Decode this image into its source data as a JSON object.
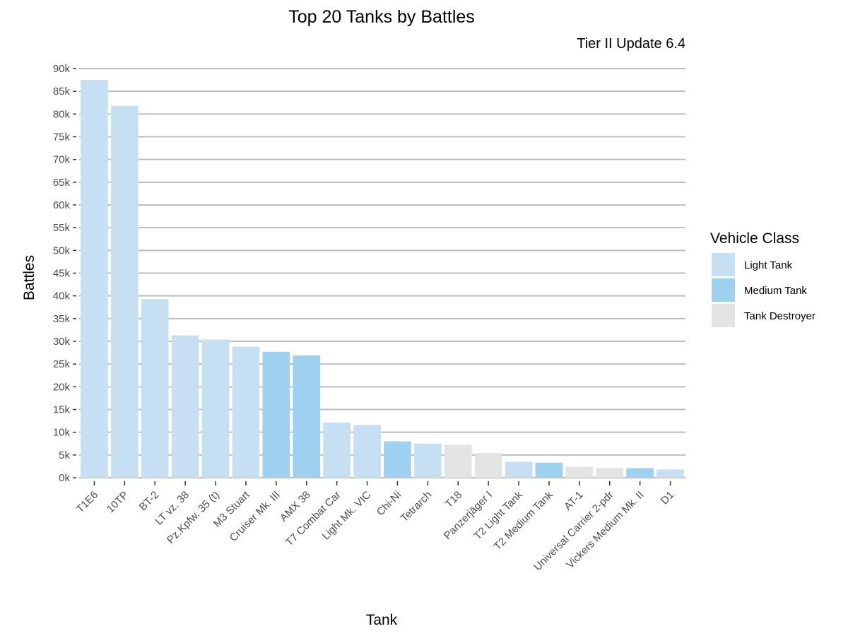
{
  "chart_data": {
    "type": "bar",
    "title": "Top 20 Tanks by Battles",
    "subtitle": "Tier II Update 6.4",
    "xlabel": "Tank",
    "ylabel": "Battles",
    "ylim": [
      0,
      90000
    ],
    "y_ticks": [
      {
        "value": 0,
        "label": "0k"
      },
      {
        "value": 5000,
        "label": "5k"
      },
      {
        "value": 10000,
        "label": "10k"
      },
      {
        "value": 15000,
        "label": "15k"
      },
      {
        "value": 20000,
        "label": "20k"
      },
      {
        "value": 25000,
        "label": "25k"
      },
      {
        "value": 30000,
        "label": "30k"
      },
      {
        "value": 35000,
        "label": "35k"
      },
      {
        "value": 40000,
        "label": "40k"
      },
      {
        "value": 45000,
        "label": "45k"
      },
      {
        "value": 50000,
        "label": "50k"
      },
      {
        "value": 55000,
        "label": "55k"
      },
      {
        "value": 60000,
        "label": "60k"
      },
      {
        "value": 65000,
        "label": "65k"
      },
      {
        "value": 70000,
        "label": "70k"
      },
      {
        "value": 75000,
        "label": "75k"
      },
      {
        "value": 80000,
        "label": "80k"
      },
      {
        "value": 85000,
        "label": "85k"
      },
      {
        "value": 90000,
        "label": "90k"
      }
    ],
    "grid": true,
    "legend": {
      "title": "Vehicle Class",
      "placement": "right",
      "entries": [
        {
          "name": "Light Tank",
          "color": "#c6dff3"
        },
        {
          "name": "Medium Tank",
          "color": "#9ed1ef"
        },
        {
          "name": "Tank Destroyer",
          "color": "#e3e3e3"
        }
      ]
    },
    "categories": [
      "T1E6",
      "10TP",
      "BT-2",
      "LT vz. 38",
      "Pz.Kpfw. 35 (t)",
      "M3 Stuart",
      "Cruiser Mk. III",
      "AMX 38",
      "T7 Combat Car",
      "Light Mk. VIC",
      "Chi-Ni",
      "Tetrarch",
      "T18",
      "Panzerjäger I",
      "T2 Light Tank",
      "T2 Medium Tank",
      "AT-1",
      "Universal Carrier 2-pdr",
      "Vickers Medium Mk. II",
      "D1"
    ],
    "values": [
      87500,
      81800,
      39300,
      31300,
      30400,
      28800,
      27700,
      26900,
      12100,
      11600,
      8000,
      7500,
      7200,
      5400,
      3500,
      3300,
      2400,
      2100,
      2100,
      1800
    ],
    "classes": [
      "Light Tank",
      "Light Tank",
      "Light Tank",
      "Light Tank",
      "Light Tank",
      "Light Tank",
      "Medium Tank",
      "Medium Tank",
      "Light Tank",
      "Light Tank",
      "Medium Tank",
      "Light Tank",
      "Tank Destroyer",
      "Tank Destroyer",
      "Light Tank",
      "Medium Tank",
      "Tank Destroyer",
      "Tank Destroyer",
      "Medium Tank",
      "Light Tank"
    ]
  }
}
